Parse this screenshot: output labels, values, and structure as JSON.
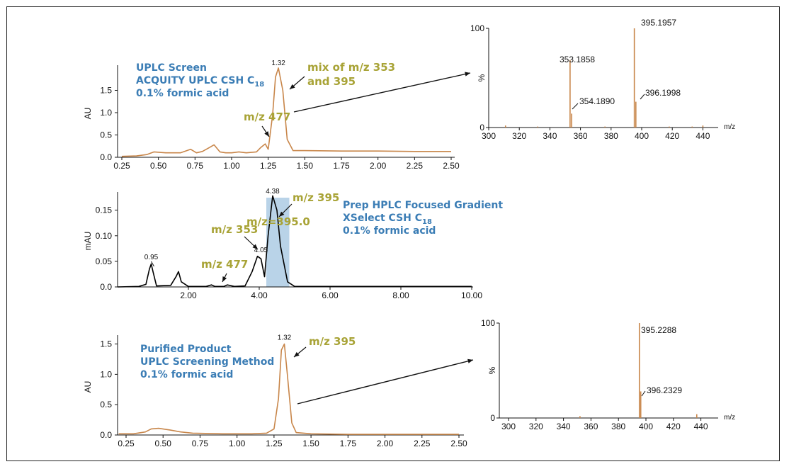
{
  "colors": {
    "orange": "#c8864a",
    "trace": "#000000",
    "blue": "#3b7db5",
    "olive": "#a8a336",
    "highlight": "#b9d3e8"
  },
  "chart_data": [
    {
      "id": "uplc",
      "type": "line",
      "ylabel": "AU",
      "xlim": [
        0.25,
        2.5
      ],
      "ylim": [
        0,
        2.0
      ],
      "xticks": [
        "0.25",
        "0.50",
        "0.75",
        "1.00",
        "1.25",
        "1.50",
        "1.75",
        "2.00",
        "2.25",
        "2.50"
      ],
      "yticks": [
        "0.0",
        "0.5",
        "1.0",
        "1.5"
      ],
      "x": [
        0.25,
        0.35,
        0.42,
        0.47,
        0.55,
        0.65,
        0.72,
        0.76,
        0.8,
        0.85,
        0.88,
        0.92,
        0.96,
        1.0,
        1.05,
        1.1,
        1.17,
        1.2,
        1.23,
        1.25,
        1.28,
        1.3,
        1.32,
        1.35,
        1.38,
        1.42,
        1.5,
        1.75,
        2.0,
        2.25,
        2.5
      ],
      "y": [
        0.02,
        0.03,
        0.06,
        0.12,
        0.1,
        0.1,
        0.18,
        0.1,
        0.13,
        0.22,
        0.28,
        0.12,
        0.1,
        0.1,
        0.12,
        0.1,
        0.12,
        0.22,
        0.3,
        0.18,
        0.95,
        1.8,
        2.0,
        1.5,
        0.4,
        0.15,
        0.15,
        0.14,
        0.14,
        0.13,
        0.13
      ],
      "peak_labels": [
        {
          "x": 1.32,
          "text": "1.32"
        }
      ],
      "title_lines": [
        "UPLC Screen",
        "ACQUITY UPLC CSH C",
        "0.1% formic acid"
      ],
      "title_sub": "18",
      "annotations": {
        "mix_line1": "mix of m/z 353",
        "mix_line2": "and 395",
        "m477": "m/z 477"
      }
    },
    {
      "id": "prep",
      "type": "line",
      "ylabel": "mAU",
      "xlim": [
        0,
        10
      ],
      "ylim": [
        0,
        0.18
      ],
      "xticks": [
        "2.00",
        "4.00",
        "6.00",
        "8.00",
        "10.00"
      ],
      "yticks": [
        "0.0",
        "0.05",
        "0.10",
        "0.15"
      ],
      "x": [
        0,
        0.6,
        0.8,
        0.9,
        0.95,
        1.0,
        1.1,
        1.5,
        1.65,
        1.72,
        1.8,
        2.0,
        2.5,
        2.65,
        2.75,
        3.0,
        3.1,
        3.3,
        3.6,
        3.8,
        3.95,
        4.05,
        4.15,
        4.25,
        4.38,
        4.5,
        4.6,
        4.8,
        5.0,
        6.0,
        8.0,
        10.0
      ],
      "y": [
        0,
        0.001,
        0.005,
        0.035,
        0.045,
        0.03,
        0.002,
        0.003,
        0.02,
        0.03,
        0.01,
        0.001,
        0.001,
        0.004,
        0.001,
        0.001,
        0.004,
        0.001,
        0.002,
        0.03,
        0.06,
        0.055,
        0.02,
        0.1,
        0.178,
        0.15,
        0.08,
        0.01,
        0.001,
        0.001,
        0.001,
        0.001
      ],
      "highlight_range": [
        4.2,
        4.85
      ],
      "peak_labels": [
        {
          "x": 0.95,
          "text": "0.95"
        },
        {
          "x": 4.05,
          "text": "4.05"
        },
        {
          "x": 4.38,
          "text": "4.38"
        }
      ],
      "title_lines": [
        "Prep HPLC Focused Gradient",
        "XSelect CSH C",
        "0.1% formic acid"
      ],
      "title_sub": "18",
      "annotations": {
        "m395": "m/z 395",
        "m353": "m/z 353",
        "m3950": "m/z=395.0",
        "m477": "m/z 477"
      }
    },
    {
      "id": "purified",
      "type": "line",
      "ylabel": "AU",
      "xlim": [
        0.25,
        2.5
      ],
      "ylim": [
        0,
        1.6
      ],
      "xticks": [
        "0.25",
        "0.50",
        "0.75",
        "1.00",
        "1.25",
        "1.50",
        "1.75",
        "2.00",
        "2.25",
        "2.50"
      ],
      "yticks": [
        "0.0",
        "0.5",
        "1.0",
        "1.5"
      ],
      "x": [
        0.2,
        0.3,
        0.38,
        0.42,
        0.47,
        0.55,
        0.62,
        0.7,
        0.9,
        1.1,
        1.2,
        1.25,
        1.28,
        1.3,
        1.32,
        1.34,
        1.37,
        1.4,
        1.5,
        1.75,
        2.0,
        2.25,
        2.5
      ],
      "y": [
        0.02,
        0.02,
        0.05,
        0.1,
        0.11,
        0.08,
        0.05,
        0.03,
        0.02,
        0.02,
        0.03,
        0.1,
        0.6,
        1.4,
        1.5,
        1.0,
        0.2,
        0.04,
        0.02,
        0.01,
        0.01,
        0.01,
        0.01
      ],
      "peak_labels": [
        {
          "x": 1.32,
          "text": "1.32"
        }
      ],
      "title_lines": [
        "Purified Product",
        "UPLC Screening Method",
        "0.1% formic acid"
      ],
      "annotations": {
        "m395": "m/z 395"
      }
    },
    {
      "id": "ms1",
      "type": "bar",
      "ylabel": "%",
      "xlabel": "m/z",
      "xlim": [
        300,
        450
      ],
      "ylim": [
        0,
        100
      ],
      "xticks": [
        "300",
        "320",
        "340",
        "360",
        "380",
        "400",
        "420",
        "440"
      ],
      "yticks": [
        "0",
        "100"
      ],
      "peaks": [
        [
          353.1858,
          68
        ],
        [
          354.189,
          14
        ],
        [
          395.1957,
          100
        ],
        [
          396.1998,
          26
        ],
        [
          311,
          2
        ],
        [
          332,
          1
        ],
        [
          376,
          1
        ],
        [
          418,
          1
        ],
        [
          433,
          1
        ],
        [
          440,
          2
        ]
      ],
      "labels": [
        "353.1858",
        "354.1890",
        "395.1957",
        "396.1998"
      ]
    },
    {
      "id": "ms2",
      "type": "bar",
      "ylabel": "%",
      "xlabel": "m/z",
      "xlim": [
        300,
        450
      ],
      "ylim": [
        0,
        100
      ],
      "xticks": [
        "300",
        "320",
        "340",
        "360",
        "380",
        "400",
        "420",
        "440"
      ],
      "yticks": [
        "0",
        "100"
      ],
      "peaks": [
        [
          395.2288,
          100
        ],
        [
          396.2329,
          28
        ],
        [
          352,
          2
        ],
        [
          437,
          4
        ]
      ],
      "labels": [
        "395.2288",
        "396.2329"
      ]
    }
  ]
}
